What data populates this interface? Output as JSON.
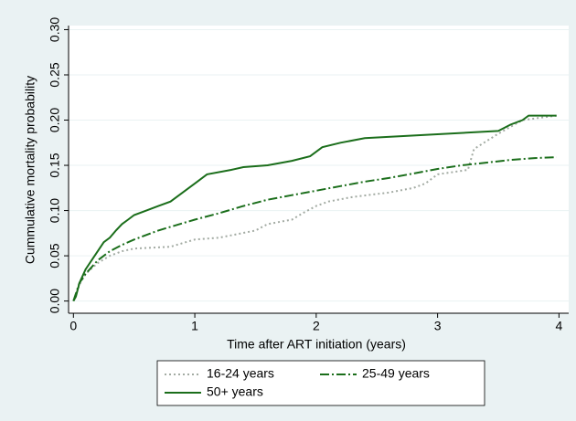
{
  "chart_data": {
    "type": "line",
    "xlabel": "Time after ART initiation (years)",
    "ylabel": "Cummulative mortality probability",
    "xlim": [
      -0.04,
      4.08
    ],
    "xticks": [
      0,
      1,
      2,
      3,
      4
    ],
    "ylim": [
      -0.0135,
      0.3045
    ],
    "yticks": [
      {
        "value": 0,
        "label": "0.00"
      },
      {
        "value": 0.05,
        "label": "0.05"
      },
      {
        "value": 0.1,
        "label": "0.10"
      },
      {
        "value": 0.15,
        "label": "0.15"
      },
      {
        "value": 0.2,
        "label": "0.20"
      },
      {
        "value": 0.25,
        "label": "0.25"
      },
      {
        "value": 0.3,
        "label": "0.30"
      }
    ],
    "grid": true,
    "series": [
      {
        "name": "16-24 years",
        "color": "#a3aba3",
        "dash": "2,3",
        "x": [
          0,
          0.05,
          0.1,
          0.2,
          0.3,
          0.4,
          0.5,
          0.8,
          0.9,
          1.0,
          1.2,
          1.5,
          1.6,
          1.8,
          1.9,
          2.0,
          2.1,
          2.3,
          2.6,
          2.8,
          2.9,
          3.0,
          3.25,
          3.3,
          3.5,
          3.7,
          3.98
        ],
        "values": [
          0,
          0.018,
          0.03,
          0.042,
          0.05,
          0.055,
          0.058,
          0.06,
          0.064,
          0.068,
          0.07,
          0.078,
          0.085,
          0.09,
          0.098,
          0.105,
          0.11,
          0.115,
          0.12,
          0.125,
          0.13,
          0.14,
          0.145,
          0.168,
          0.185,
          0.2,
          0.205
        ]
      },
      {
        "name": "25-49 years",
        "color": "#1b6e1b",
        "dash": "10,3,2,3",
        "x": [
          0,
          0.05,
          0.1,
          0.2,
          0.3,
          0.4,
          0.5,
          0.7,
          0.9,
          1.0,
          1.2,
          1.4,
          1.6,
          1.8,
          2.0,
          2.2,
          2.4,
          2.6,
          2.8,
          3.0,
          3.2,
          3.4,
          3.6,
          3.8,
          3.98
        ],
        "values": [
          0,
          0.02,
          0.03,
          0.045,
          0.055,
          0.062,
          0.068,
          0.078,
          0.086,
          0.09,
          0.097,
          0.105,
          0.112,
          0.117,
          0.122,
          0.127,
          0.132,
          0.136,
          0.141,
          0.146,
          0.15,
          0.153,
          0.156,
          0.158,
          0.159
        ]
      },
      {
        "name": "50+ years",
        "color": "#1b6e1b",
        "dash": "none",
        "x": [
          0,
          0.02,
          0.05,
          0.1,
          0.15,
          0.2,
          0.25,
          0.3,
          0.35,
          0.4,
          0.45,
          0.5,
          0.6,
          0.7,
          0.8,
          0.9,
          1.0,
          1.1,
          1.3,
          1.4,
          1.6,
          1.8,
          1.95,
          2.05,
          2.2,
          2.4,
          3.5,
          3.6,
          3.7,
          3.75,
          3.98
        ],
        "values": [
          0,
          0.005,
          0.02,
          0.035,
          0.045,
          0.055,
          0.065,
          0.07,
          0.078,
          0.085,
          0.09,
          0.095,
          0.1,
          0.105,
          0.11,
          0.12,
          0.13,
          0.14,
          0.145,
          0.148,
          0.15,
          0.155,
          0.16,
          0.17,
          0.175,
          0.18,
          0.188,
          0.195,
          0.2,
          0.205,
          0.205
        ]
      }
    ]
  }
}
